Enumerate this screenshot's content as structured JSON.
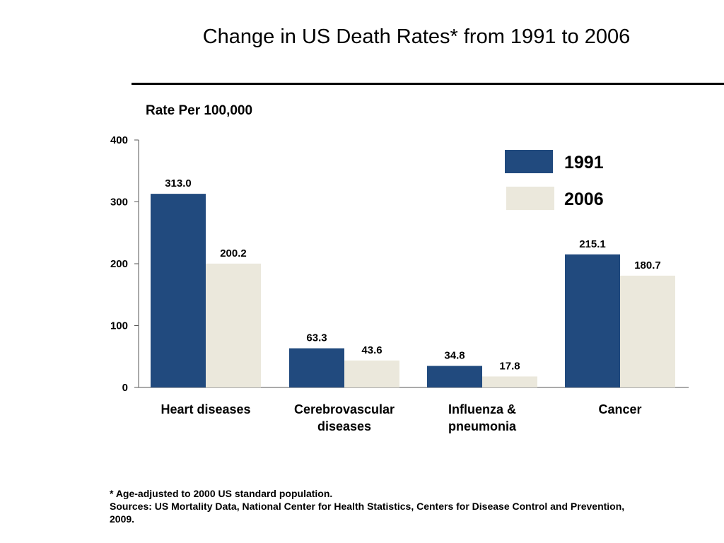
{
  "title": "Change in US Death Rates* from 1991 to 2006",
  "footnotes": {
    "asterisk": "* Age-adjusted to 2000 US standard population.",
    "sources": "Sources: US Mortality Data, National Center for Health Statistics, Centers for Disease Control and Prevention, 2009."
  },
  "colors": {
    "series_1991": "#214a7e",
    "series_2006": "#ebe8dc"
  },
  "chart_data": {
    "type": "bar",
    "title": "Change in US Death Rates* from 1991 to 2006",
    "xlabel": "",
    "ylabel": "Rate Per 100,000",
    "ylim": [
      0,
      400
    ],
    "yticks": [
      0,
      100,
      200,
      300,
      400
    ],
    "grid": false,
    "legend_position": "top-right",
    "categories": [
      [
        "Heart diseases"
      ],
      [
        "Cerebrovascular",
        "diseases"
      ],
      [
        "Influenza &",
        "pneumonia"
      ],
      [
        "Cancer"
      ]
    ],
    "series": [
      {
        "name": "1991",
        "values": [
          313.0,
          63.3,
          34.8,
          215.1
        ],
        "labels": [
          "313.0",
          "63.3",
          "34.8",
          "215.1"
        ]
      },
      {
        "name": "2006",
        "values": [
          200.2,
          43.6,
          17.8,
          180.7
        ],
        "labels": [
          "200.2",
          "43.6",
          "17.8",
          "180.7"
        ]
      }
    ]
  }
}
